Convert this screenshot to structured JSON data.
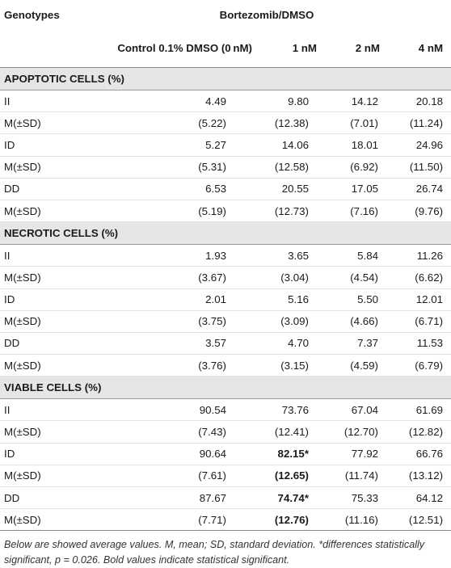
{
  "header": {
    "genotypes_label": "Genotypes",
    "group_label": "Bortezomib/DMSO",
    "columns": [
      "Control 0.1% DMSO (0 nM)",
      "1 nM",
      "2 nM",
      "4 nM"
    ]
  },
  "sections": [
    {
      "title": "APOPTOTIC CELLS (%)",
      "rows": [
        {
          "label": "II",
          "values": [
            "4.49",
            "9.80",
            "14.12",
            "20.18"
          ]
        },
        {
          "label": "M(±SD)",
          "values": [
            "(5.22)",
            "(12.38)",
            "(7.01)",
            "(11.24)"
          ]
        },
        {
          "label": "ID",
          "values": [
            "5.27",
            "14.06",
            "18.01",
            "24.96"
          ]
        },
        {
          "label": "M(±SD)",
          "values": [
            "(5.31)",
            "(12.58)",
            "(6.92)",
            "(11.50)"
          ]
        },
        {
          "label": "DD",
          "values": [
            "6.53",
            "20.55",
            "17.05",
            "26.74"
          ]
        },
        {
          "label": "M(±SD)",
          "values": [
            "(5.19)",
            "(12.73)",
            "(7.16)",
            "(9.76)"
          ]
        }
      ]
    },
    {
      "title": "NECROTIC CELLS (%)",
      "rows": [
        {
          "label": "II",
          "values": [
            "1.93",
            "3.65",
            "5.84",
            "11.26"
          ]
        },
        {
          "label": "M(±SD)",
          "values": [
            "(3.67)",
            "(3.04)",
            "(4.54)",
            "(6.62)"
          ]
        },
        {
          "label": "ID",
          "values": [
            "2.01",
            "5.16",
            "5.50",
            "12.01"
          ]
        },
        {
          "label": "M(±SD)",
          "values": [
            "(3.75)",
            "(3.09)",
            "(4.66)",
            "(6.71)"
          ]
        },
        {
          "label": "DD",
          "values": [
            "3.57",
            "4.70",
            "7.37",
            "11.53"
          ]
        },
        {
          "label": "M(±SD)",
          "values": [
            "(3.76)",
            "(3.15)",
            "(4.59)",
            "(6.79)"
          ]
        }
      ]
    },
    {
      "title": "VIABLE CELLS (%)",
      "rows": [
        {
          "label": "II",
          "values": [
            "90.54",
            "73.76",
            "67.04",
            "61.69"
          ]
        },
        {
          "label": "M(±SD)",
          "values": [
            "(7.43)",
            "(12.41)",
            "(12.70)",
            "(12.82)"
          ]
        },
        {
          "label": "ID",
          "values": [
            "90.64",
            "82.15*",
            "77.92",
            "66.76"
          ],
          "bold": [
            false,
            true,
            false,
            false
          ]
        },
        {
          "label": "M(±SD)",
          "values": [
            "(7.61)",
            "(12.65)",
            "(11.74)",
            "(13.12)"
          ],
          "bold": [
            false,
            true,
            false,
            false
          ]
        },
        {
          "label": "DD",
          "values": [
            "87.67",
            "74.74*",
            "75.33",
            "64.12"
          ],
          "bold": [
            false,
            true,
            false,
            false
          ]
        },
        {
          "label": "M(±SD)",
          "values": [
            "(7.71)",
            "(12.76)",
            "(11.16)",
            "(12.51)"
          ],
          "bold": [
            false,
            true,
            false,
            false
          ]
        }
      ]
    }
  ],
  "footnote": "Below are showed average values. M, mean; SD, standard deviation. *differences statistically significant, p = 0.026. Bold values indicate statistical significant."
}
